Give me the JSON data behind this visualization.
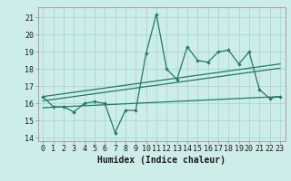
{
  "title": "",
  "xlabel": "Humidex (Indice chaleur)",
  "ylabel": "",
  "bg_color": "#cdeee8",
  "grid_color": "#a8d8d0",
  "line_color": "#1e7a6a",
  "xlim": [
    -0.5,
    23.5
  ],
  "ylim": [
    13.8,
    21.6
  ],
  "yticks": [
    14,
    15,
    16,
    17,
    18,
    19,
    20,
    21
  ],
  "xticks": [
    0,
    1,
    2,
    3,
    4,
    5,
    6,
    7,
    8,
    9,
    10,
    11,
    12,
    13,
    14,
    15,
    16,
    17,
    18,
    19,
    20,
    21,
    22,
    23
  ],
  "main_y": [
    16.4,
    15.8,
    15.8,
    15.5,
    16.0,
    16.1,
    16.0,
    14.3,
    15.6,
    15.6,
    18.9,
    21.2,
    18.0,
    17.4,
    19.3,
    18.5,
    18.4,
    19.0,
    19.1,
    18.3,
    19.0,
    16.8,
    16.3,
    16.4
  ],
  "trend1_start_x": 0,
  "trend1_start_y": 16.4,
  "trend1_end_x": 23,
  "trend1_end_y": 18.3,
  "trend2_start_x": 0,
  "trend2_start_y": 16.15,
  "trend2_end_x": 23,
  "trend2_end_y": 18.05,
  "trend3_start_x": 0,
  "trend3_start_y": 15.75,
  "trend3_end_x": 23,
  "trend3_end_y": 16.4,
  "tick_fontsize": 6,
  "xlabel_fontsize": 7
}
